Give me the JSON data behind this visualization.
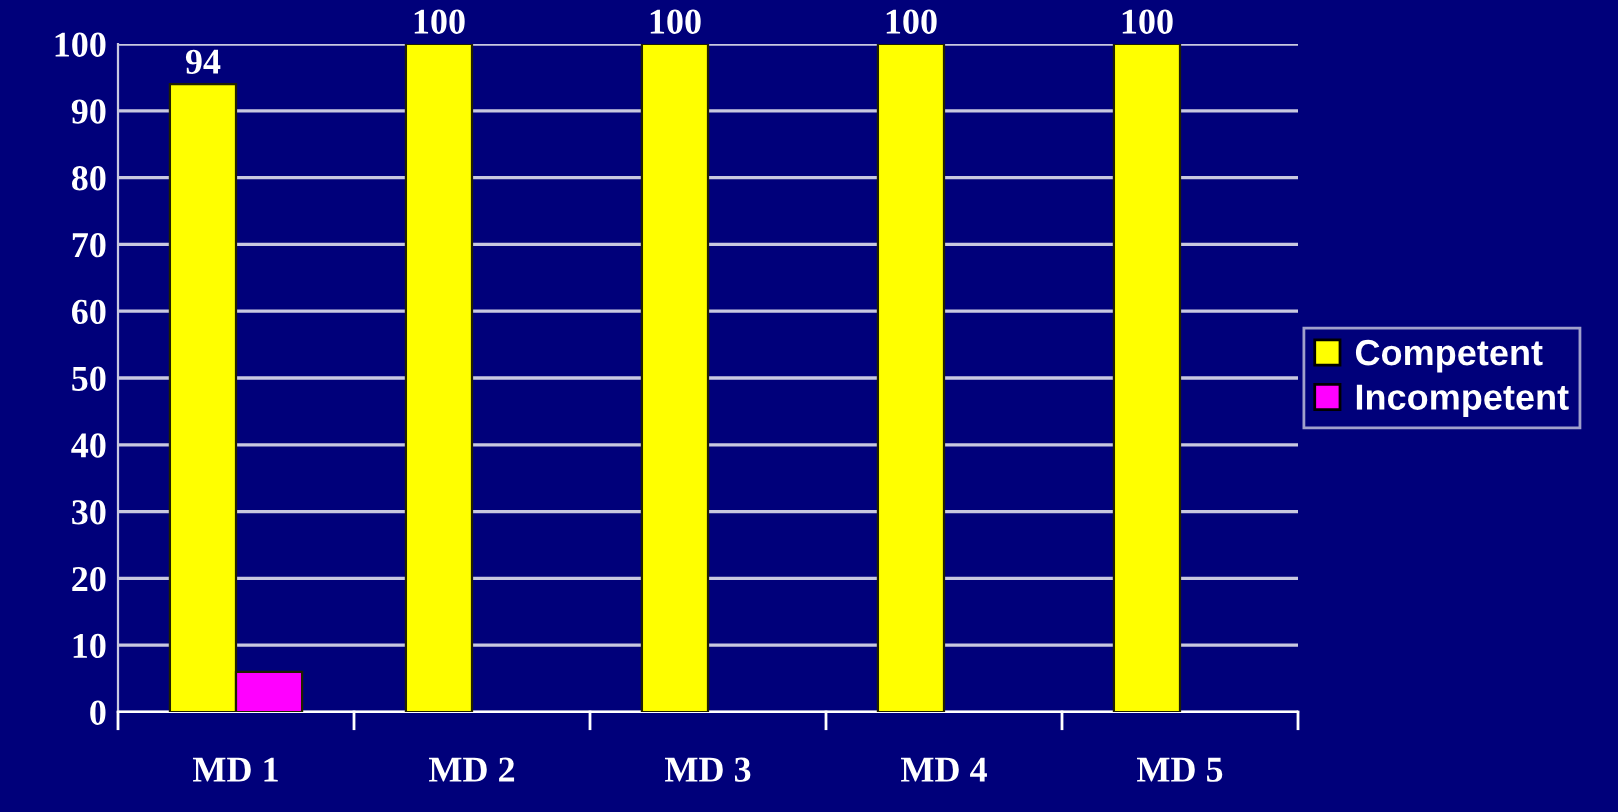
{
  "chart_data": {
    "type": "bar",
    "categories": [
      "MD 1",
      "MD 2",
      "MD 3",
      "MD 4",
      "MD 5"
    ],
    "series": [
      {
        "name": "Competent",
        "color": "#ffff00",
        "values": [
          94,
          100,
          100,
          100,
          100
        ],
        "value_labels": [
          "94",
          "100",
          "100",
          "100",
          "100"
        ]
      },
      {
        "name": "Incompetent",
        "color": "#ff00ff",
        "values": [
          6,
          null,
          null,
          null,
          null
        ],
        "value_labels": [
          null,
          null,
          null,
          null,
          null
        ]
      }
    ],
    "ylim": [
      0,
      100
    ],
    "yticks": [
      0,
      10,
      20,
      30,
      40,
      50,
      60,
      70,
      80,
      90,
      100
    ],
    "grid": "y",
    "legend": "right"
  }
}
